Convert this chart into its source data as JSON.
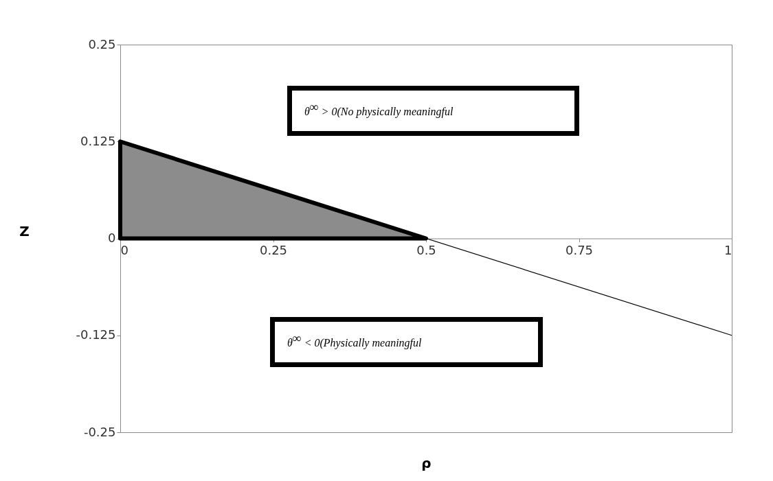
{
  "chart_data": {
    "type": "line",
    "xlabel": "ρ",
    "ylabel": "Z",
    "series": [
      {
        "type": "area",
        "color": "#8c8c8c",
        "x": [
          0,
          0.5
        ],
        "values": [
          0.125,
          0
        ]
      },
      {
        "color": "#000000",
        "x": [
          0,
          1
        ],
        "values": [
          0.125,
          -0.125
        ]
      }
    ],
    "xlim": [
      0,
      1
    ],
    "xticks": [
      0,
      0.25,
      0.5,
      0.75,
      1
    ],
    "ylim": [
      -0.25,
      0.25
    ],
    "yticks": [
      -0.25,
      -0.125,
      0,
      0.125,
      0.25
    ],
    "grid": false,
    "annotations": [
      "θ$^{∞}$ > 0(No physically meaningful",
      "θ$^{∞}$ < 0(Physically meaningful"
    ]
  }
}
